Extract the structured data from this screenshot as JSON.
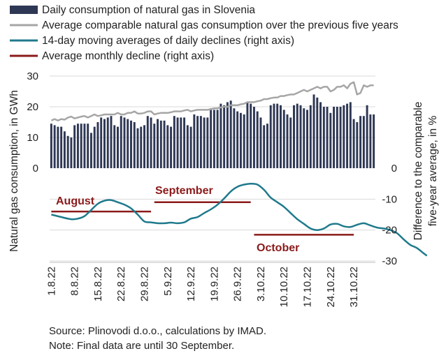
{
  "chart_data": {
    "type": "bar+line",
    "legend": [
      {
        "label": "Daily consumption of natural gas in Slovenia",
        "color": "#2e3754",
        "kind": "bar"
      },
      {
        "label": "Average comparable natural gas consumption over the previous five years",
        "color": "#a6a6a6",
        "kind": "line"
      },
      {
        "label": "14-day moving averages of daily declines (right axis)",
        "color": "#1f7a8c",
        "kind": "line"
      },
      {
        "label": "Average monthly decline (right axis)",
        "color": "#8b1a1a",
        "kind": "line"
      }
    ],
    "left_axis": {
      "title": "Natural gas consumption, in GWh",
      "ticks": [
        "0",
        "10",
        "20",
        "30"
      ],
      "range": [
        0,
        30
      ]
    },
    "right_axis": {
      "title_line1": "Difference to the comparable",
      "title_line2": "five-year average, in %",
      "ticks": [
        "0",
        "-10",
        "-20",
        "-30"
      ],
      "range": [
        -30,
        0
      ]
    },
    "x_ticks": [
      "1.8.22",
      "8.8.22",
      "15.8.22",
      "22.8.22",
      "29.8.22",
      "5.9.22",
      "12.9.22",
      "19.9.22",
      "26.9.22",
      "3.10.22",
      "10.10.22",
      "17.10.22",
      "24.10.22",
      "31.10.22"
    ],
    "daily_consumption": [
      14.5,
      14.0,
      13.5,
      13.5,
      12.0,
      10.5,
      10.0,
      14.0,
      14.5,
      14.5,
      14.5,
      14.5,
      11.5,
      13.5,
      15.0,
      16.5,
      16.0,
      16.5,
      17.0,
      14.0,
      13.5,
      17.0,
      16.5,
      16.0,
      15.5,
      15.0,
      13.0,
      13.5,
      14.0,
      17.0,
      16.5,
      14.5,
      16.0,
      15.5,
      15.5,
      14.0,
      13.5,
      17.0,
      16.5,
      16.5,
      16.5,
      14.0,
      13.5,
      17.5,
      17.0,
      17.0,
      16.5,
      16.5,
      19.5,
      19.0,
      19.0,
      21.0,
      20.5,
      21.5,
      22.0,
      19.5,
      18.5,
      18.0,
      17.5,
      21.5,
      21.0,
      20.0,
      18.5,
      16.5,
      14.0,
      14.5,
      20.5,
      21.0,
      21.0,
      20.5,
      19.0,
      17.5,
      16.5,
      20.5,
      21.0,
      20.5,
      19.5,
      19.0,
      20.5,
      24.0,
      23.0,
      21.5,
      20.0,
      20.0,
      18.0,
      20.0,
      20.0,
      20.0,
      20.5,
      21.0,
      21.5,
      16.0,
      15.0,
      17.0,
      17.0,
      20.5,
      17.5,
      17.5
    ],
    "five_year_average": [
      15.5,
      16.0,
      15.5,
      16.0,
      15.8,
      16.5,
      16.8,
      16.2,
      16.5,
      16.8,
      17.0,
      16.5,
      17.0,
      17.5,
      17.0,
      17.2,
      17.5,
      17.5,
      17.5,
      17.5,
      18.0,
      17.5,
      17.5,
      18.0,
      18.0,
      18.5,
      17.8,
      17.8,
      18.0,
      18.5,
      18.5,
      17.5,
      17.8,
      18.0,
      18.0,
      18.0,
      18.2,
      18.5,
      18.5,
      18.5,
      18.8,
      19.0,
      18.5,
      18.8,
      19.0,
      19.0,
      19.0,
      19.0,
      19.2,
      19.5,
      19.5,
      19.8,
      20.0,
      20.0,
      20.5,
      20.5,
      20.5,
      20.8,
      21.0,
      21.5,
      21.5,
      21.5,
      21.8,
      22.0,
      22.5,
      22.5,
      22.8,
      23.0,
      23.0,
      23.5,
      23.5,
      23.8,
      24.0,
      24.0,
      24.5,
      25.0,
      25.5,
      25.0,
      25.5,
      26.0,
      26.5,
      26.0,
      26.5,
      26.5,
      25.0,
      25.5,
      26.5,
      26.5,
      27.0,
      26.0,
      27.5,
      28.0,
      24.0,
      24.5,
      27.0,
      26.5,
      27.0,
      27.0
    ],
    "moving_avg_decline": [
      [
        0,
        -15.0
      ],
      [
        3,
        -15.8
      ],
      [
        6,
        -16.5
      ],
      [
        8,
        -16.3
      ],
      [
        10,
        -15.5
      ],
      [
        12,
        -13.5
      ],
      [
        14,
        -11.5
      ],
      [
        16,
        -10.5
      ],
      [
        18,
        -10.3
      ],
      [
        20,
        -11.0
      ],
      [
        22,
        -11.8
      ],
      [
        24,
        -13.0
      ],
      [
        26,
        -15.0
      ],
      [
        28,
        -17.2
      ],
      [
        30,
        -17.5
      ],
      [
        32,
        -17.8
      ],
      [
        34,
        -17.8
      ],
      [
        36,
        -17.6
      ],
      [
        38,
        -17.8
      ],
      [
        40,
        -17.5
      ],
      [
        42,
        -16.3
      ],
      [
        44,
        -15.8
      ],
      [
        46,
        -14.5
      ],
      [
        48,
        -13.3
      ],
      [
        50,
        -11.8
      ],
      [
        52,
        -9.8
      ],
      [
        54,
        -7.5
      ],
      [
        56,
        -6.0
      ],
      [
        58,
        -5.3
      ],
      [
        60,
        -5.0
      ],
      [
        62,
        -5.3
      ],
      [
        64,
        -7.0
      ],
      [
        66,
        -9.5
      ],
      [
        68,
        -11.0
      ],
      [
        70,
        -12.5
      ],
      [
        72,
        -14.5
      ],
      [
        74,
        -16.5
      ],
      [
        76,
        -18.0
      ],
      [
        78,
        -19.5
      ],
      [
        80,
        -20.0
      ],
      [
        82,
        -19.5
      ],
      [
        84,
        -18.2
      ],
      [
        86,
        -18.0
      ],
      [
        88,
        -18.8
      ],
      [
        90,
        -19.0
      ],
      [
        92,
        -18.3
      ],
      [
        94,
        -17.8
      ],
      [
        96,
        -18.5
      ],
      [
        98,
        -19.2
      ],
      [
        100,
        -19.5
      ],
      [
        102,
        -20.0
      ],
      [
        104,
        -21.0
      ],
      [
        106,
        -23.0
      ],
      [
        108,
        -24.8
      ],
      [
        110,
        -25.8
      ],
      [
        112,
        -27.5
      ],
      [
        113,
        -28.3
      ]
    ],
    "monthly_declines": [
      {
        "month": "August",
        "value": -14.0,
        "start": 0,
        "end": 30
      },
      {
        "month": "September",
        "value": -11.0,
        "start": 31,
        "end": 60
      },
      {
        "month": "October",
        "value": -21.5,
        "start": 61,
        "end": 91
      }
    ]
  },
  "notes": {
    "source": "Source: Plinovodi d.o.o., calculations by IMAD.",
    "note": "Note: Final data are until 30 September."
  }
}
